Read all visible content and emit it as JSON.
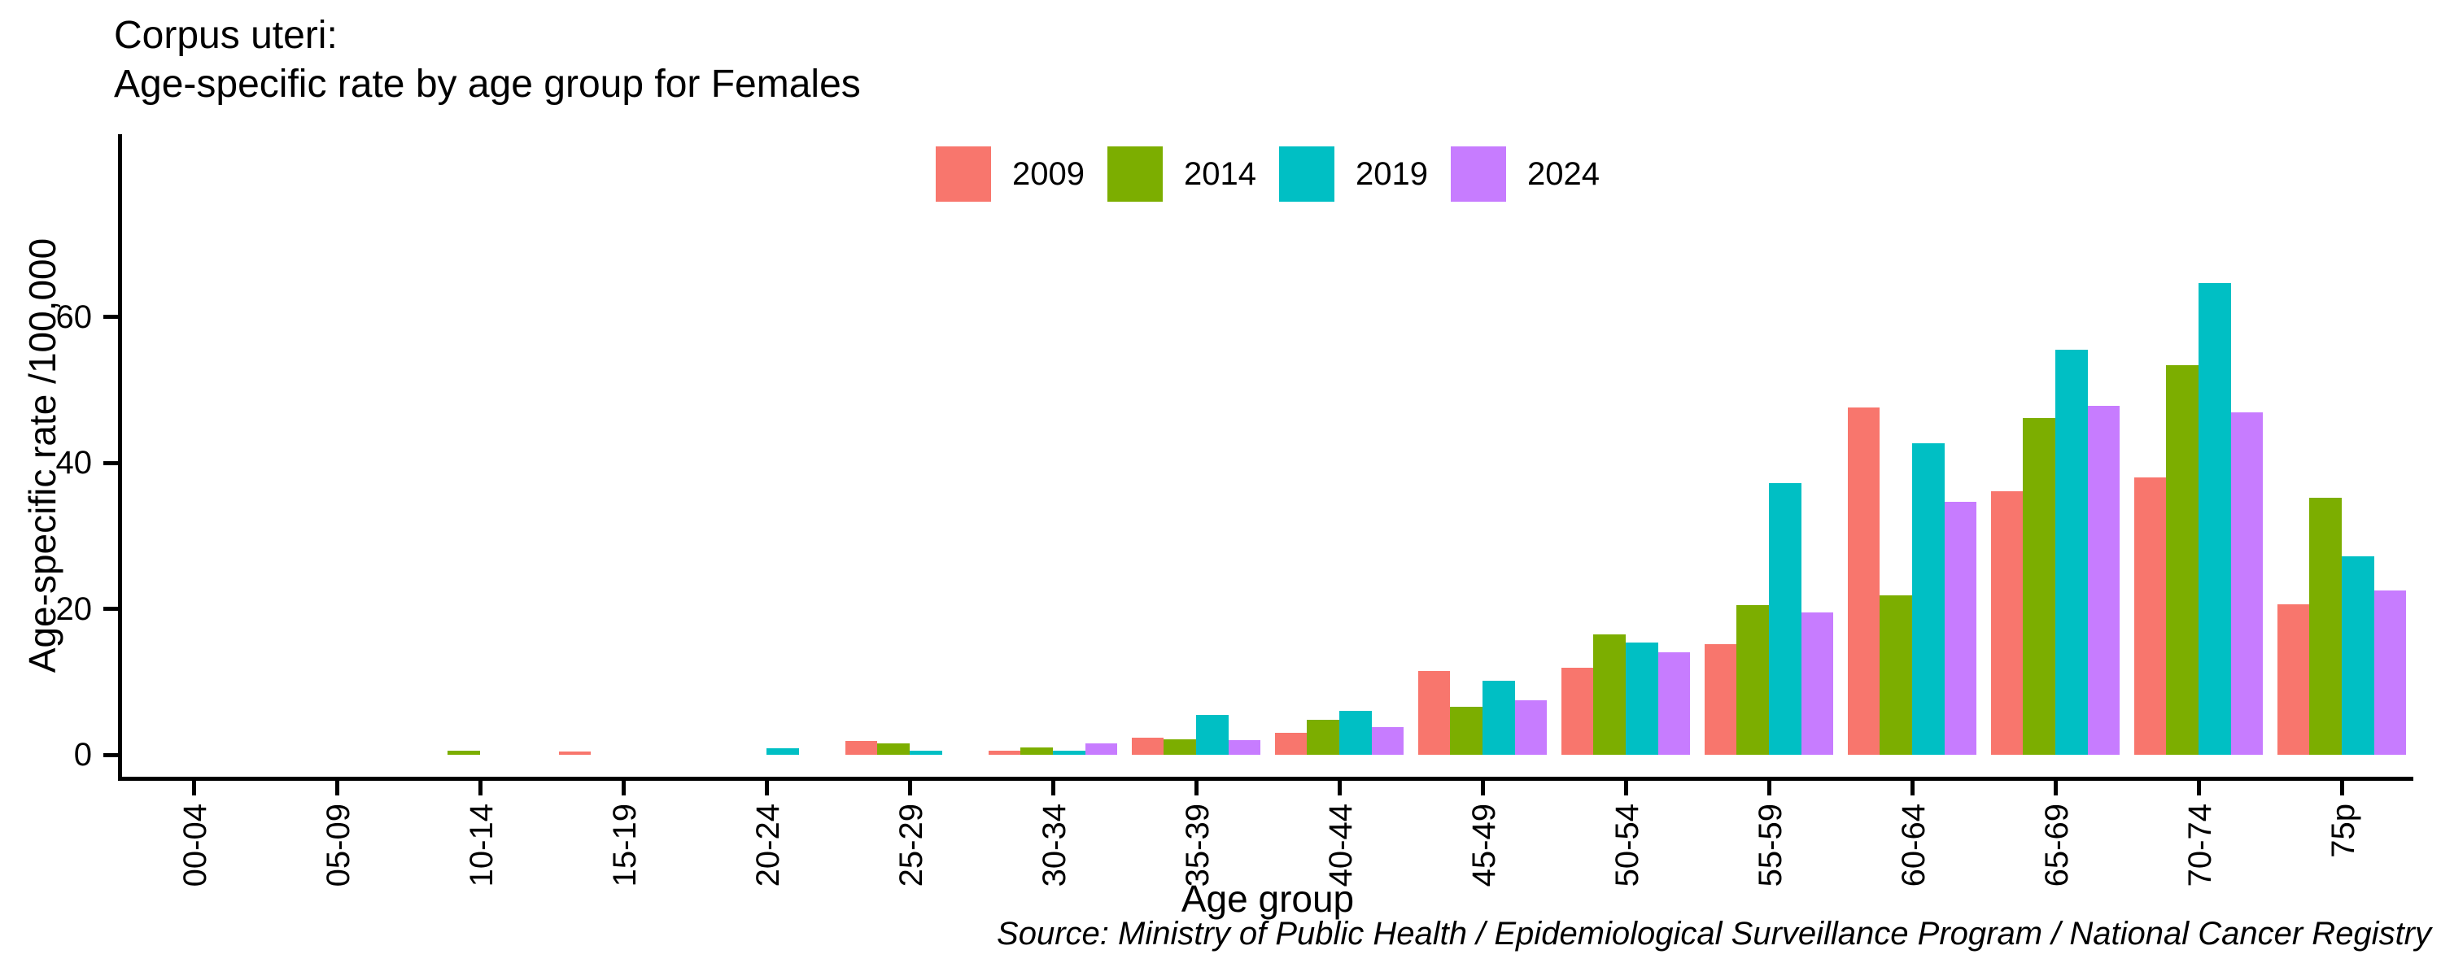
{
  "title": {
    "line1": "Corpus uteri:",
    "line2": "Age-specific rate by age group for Females"
  },
  "chart_data": {
    "type": "bar",
    "title": "Corpus uteri: Age-specific rate by age group for Females",
    "categories": [
      "00-04",
      "05-09",
      "10-14",
      "15-19",
      "20-24",
      "25-29",
      "30-34",
      "35-39",
      "40-44",
      "45-49",
      "50-54",
      "55-59",
      "60-64",
      "65-69",
      "70-74",
      "75p"
    ],
    "series": [
      {
        "name": "2009",
        "color": "#F8766D",
        "values": [
          0,
          0,
          0,
          0.5,
          0,
          1.9,
          0.6,
          2.3,
          3.0,
          11.5,
          11.9,
          15.2,
          47.6,
          36.1,
          38.0,
          20.6
        ]
      },
      {
        "name": "2014",
        "color": "#7CAE00",
        "values": [
          0,
          0,
          0.6,
          0,
          0,
          1.6,
          1.0,
          2.1,
          4.8,
          6.6,
          16.5,
          20.5,
          21.9,
          46.2,
          53.4,
          35.2
        ]
      },
      {
        "name": "2019",
        "color": "#00BFC4",
        "values": [
          0,
          0,
          0,
          0,
          0.9,
          0.6,
          0.6,
          5.5,
          6.0,
          10.1,
          15.4,
          37.2,
          42.7,
          55.5,
          64.7,
          27.2
        ]
      },
      {
        "name": "2024",
        "color": "#C77CFF",
        "values": [
          0,
          0,
          0,
          0,
          0,
          0,
          1.6,
          2.0,
          3.8,
          7.5,
          14.1,
          19.5,
          34.7,
          47.8,
          47.0,
          22.5
        ]
      }
    ],
    "xlabel": "Age group",
    "ylabel": "Age-specific rate /100,000",
    "yticks": [
      0,
      20,
      40,
      60
    ],
    "ylim": [
      0,
      85
    ],
    "grid": false,
    "legend_position": "top",
    "bar_width_fraction": 0.9
  },
  "source": "Source: Ministry of Public Health / Epidemiological Surveillance Program / National Cancer Registry"
}
